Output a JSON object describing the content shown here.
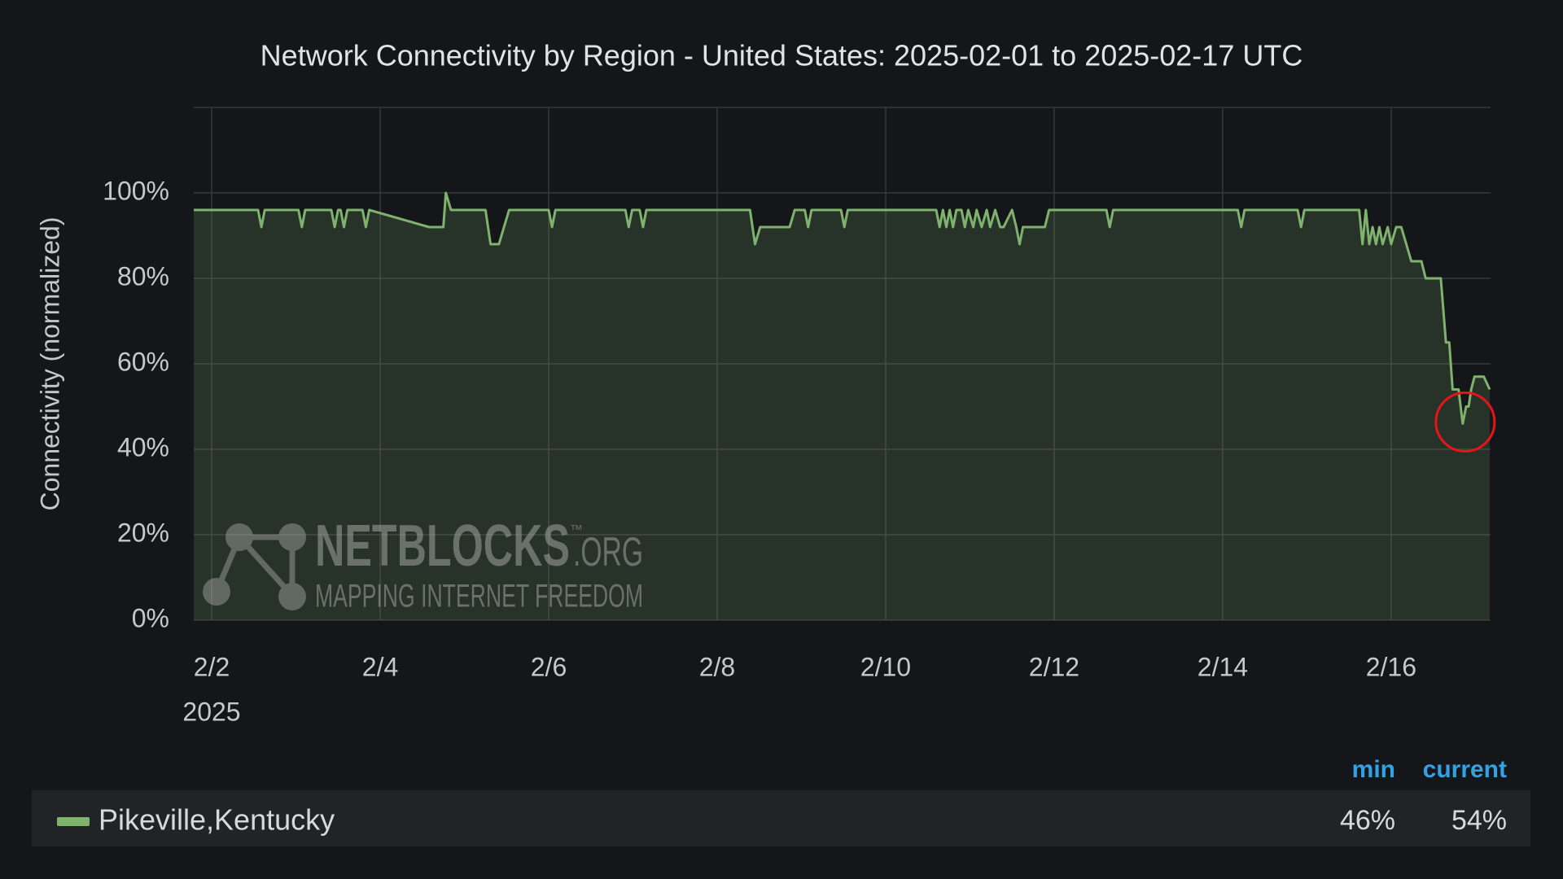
{
  "chart_data": {
    "type": "line",
    "title": "Network Connectivity by Region - United States: 2025-02-01 to 2025-02-17 UTC",
    "y_label": "Connectivity (normalized)",
    "year_label": "2025",
    "xlim": [
      1.787,
      17.18
    ],
    "xticks": [
      {
        "value": 2,
        "label": "2/2"
      },
      {
        "value": 4,
        "label": "2/4"
      },
      {
        "value": 6,
        "label": "2/6"
      },
      {
        "value": 8,
        "label": "2/8"
      },
      {
        "value": 10,
        "label": "2/10"
      },
      {
        "value": 12,
        "label": "2/12"
      },
      {
        "value": 14,
        "label": "2/14"
      },
      {
        "value": 16,
        "label": "2/16"
      }
    ],
    "ylim": [
      0,
      120
    ],
    "yticks": [
      {
        "value": 0,
        "label": "0%"
      },
      {
        "value": 20,
        "label": "20%"
      },
      {
        "value": 40,
        "label": "40%"
      },
      {
        "value": 60,
        "label": "60%"
      },
      {
        "value": 80,
        "label": "80%"
      },
      {
        "value": 100,
        "label": "100%"
      }
    ],
    "grid": true,
    "x": [
      1.787,
      2.55,
      2.59,
      2.63,
      3.03,
      3.07,
      3.11,
      3.42,
      3.46,
      3.5,
      3.53,
      3.57,
      3.61,
      3.79,
      3.83,
      3.87,
      4.58,
      4.75,
      4.78,
      4.84,
      5.25,
      5.31,
      5.41,
      5.47,
      5.53,
      6.0,
      6.04,
      6.08,
      6.91,
      6.95,
      6.99,
      7.08,
      7.12,
      7.16,
      8.39,
      8.45,
      8.51,
      8.86,
      8.92,
      9.04,
      9.08,
      9.12,
      9.47,
      9.51,
      9.55,
      10.6,
      10.64,
      10.68,
      10.72,
      10.76,
      10.8,
      10.84,
      10.9,
      10.94,
      10.98,
      11.04,
      11.08,
      11.14,
      11.2,
      11.24,
      11.3,
      11.36,
      11.4,
      11.5,
      11.55,
      11.59,
      11.63,
      11.66,
      11.89,
      11.94,
      12.62,
      12.66,
      12.7,
      14.18,
      14.22,
      14.26,
      14.89,
      14.93,
      14.97,
      15.62,
      15.66,
      15.7,
      15.74,
      15.78,
      15.82,
      15.86,
      15.9,
      15.96,
      16.0,
      16.06,
      16.12,
      16.18,
      16.24,
      16.36,
      16.41,
      16.59,
      16.65,
      16.69,
      16.73,
      16.8,
      16.85,
      16.89,
      16.92,
      16.95,
      16.99,
      17.1,
      17.17
    ],
    "series": [
      {
        "name": "Pikeville,Kentucky",
        "color": "#7eb26d",
        "values": [
          96,
          96,
          92,
          96,
          96,
          92,
          96,
          96,
          92,
          96,
          96,
          92,
          96,
          96,
          92,
          96,
          92,
          92,
          100,
          96,
          96,
          88,
          88,
          92,
          96,
          96,
          92,
          96,
          96,
          92,
          96,
          96,
          92,
          96,
          96,
          88,
          92,
          92,
          96,
          96,
          92,
          96,
          96,
          92,
          96,
          96,
          92,
          96,
          92,
          96,
          92,
          96,
          96,
          92,
          96,
          92,
          96,
          92,
          96,
          92,
          96,
          92,
          92,
          96,
          92,
          88,
          92,
          92,
          92,
          96,
          96,
          92,
          96,
          96,
          92,
          96,
          96,
          92,
          96,
          96,
          88,
          96,
          88,
          92,
          88,
          92,
          88,
          92,
          88,
          92,
          92,
          88,
          84,
          84,
          80,
          80,
          65,
          65,
          54,
          54,
          46,
          50,
          50,
          54,
          57,
          57,
          54
        ]
      }
    ],
    "legend": {
      "columns": [
        "min",
        "current"
      ],
      "values": [
        "46%",
        "54%"
      ]
    }
  },
  "watermark": {
    "name": "NETBLOCKS",
    "tm": "™",
    "domain": ".ORG",
    "tagline": "MAPPING INTERNET FREEDOM"
  }
}
